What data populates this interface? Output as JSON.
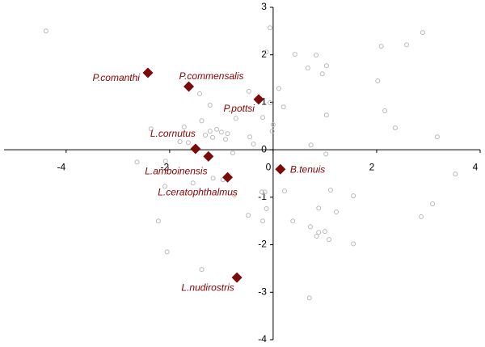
{
  "chart_data": {
    "type": "scatter",
    "xlim": [
      -5.2,
      4.0
    ],
    "ylim": [
      -4,
      3
    ],
    "xticks": [
      -4,
      -2,
      0,
      2,
      4
    ],
    "yticks": [
      -4,
      -3,
      -2,
      -1,
      0,
      1,
      2,
      3
    ],
    "series": [
      {
        "color": "#b8b8b8",
        "marker": "circle",
        "x": [
          -4.39,
          -0.06,
          -0.13,
          0.42,
          0.83,
          1.03,
          0.67,
          0.95,
          2.09,
          2.58,
          2.89,
          2.02,
          2.16,
          2.36,
          3.17,
          0.11,
          -0.47,
          0.2,
          -0.06,
          -0.2,
          0.0,
          -0.72,
          1.03,
          0.73,
          1.02,
          -1.42,
          -1.22,
          -1.38,
          -1.72,
          -2.36,
          -1.09,
          -1.0,
          -1.22,
          -1.31,
          -0.88,
          -0.92,
          -1.17,
          -1.8,
          -1.64,
          -0.45,
          -0.38,
          -0.02,
          -0.78,
          -2.63,
          -2.08,
          -2.09,
          -1.55,
          -0.97,
          -0.75,
          -0.16,
          0.22,
          -0.22,
          -0.13,
          -0.2,
          -0.48,
          -1.16,
          -2.22,
          -2.05,
          -1.38,
          0.38,
          0.88,
          1.11,
          1.22,
          0.88,
          1.0,
          0.84,
          1.08,
          0.72,
          1.55,
          1.55,
          0.7,
          3.08,
          2.86,
          3.52
        ],
        "values": [
          2.5,
          2.57,
          2.06,
          2.01,
          1.99,
          1.77,
          1.72,
          1.6,
          2.18,
          2.21,
          2.47,
          1.45,
          0.82,
          0.46,
          0.27,
          1.29,
          1.23,
          0.9,
          0.99,
          0.68,
          0.53,
          0.66,
          0.73,
          0.1,
          -0.09,
          1.18,
          0.94,
          0.61,
          0.48,
          0.44,
          0.43,
          0.37,
          0.39,
          0.31,
          0.34,
          0.22,
          0.26,
          0.17,
          0.15,
          0.27,
          0.12,
          0.39,
          -0.07,
          -0.26,
          -0.24,
          -0.77,
          -0.7,
          -0.63,
          -0.95,
          -0.89,
          -0.87,
          -0.89,
          -1.24,
          -1.5,
          -1.38,
          -0.6,
          -1.5,
          -2.15,
          -2.52,
          -1.5,
          -1.23,
          -0.85,
          -1.31,
          -1.74,
          -1.72,
          -1.82,
          -1.89,
          -1.62,
          -0.97,
          -1.98,
          -3.12,
          -1.14,
          -1.41,
          -0.51
        ]
      },
      {
        "color": "#7b0a0a",
        "marker": "diamond",
        "x": [
          -2.42,
          -1.63,
          -0.28,
          -1.5,
          -1.25,
          -0.88,
          0.14,
          -0.7
        ],
        "values": [
          1.62,
          1.33,
          1.06,
          0.02,
          -0.14,
          -0.58,
          -0.41,
          -2.69
        ],
        "labels": [
          "P.comanthi",
          "P.commensalis",
          "P.pottsi",
          "L.cornutus",
          "L.amboinensis",
          "L.ceratophthalmus",
          "B.tenuis",
          "L.nudirostris"
        ]
      }
    ]
  }
}
